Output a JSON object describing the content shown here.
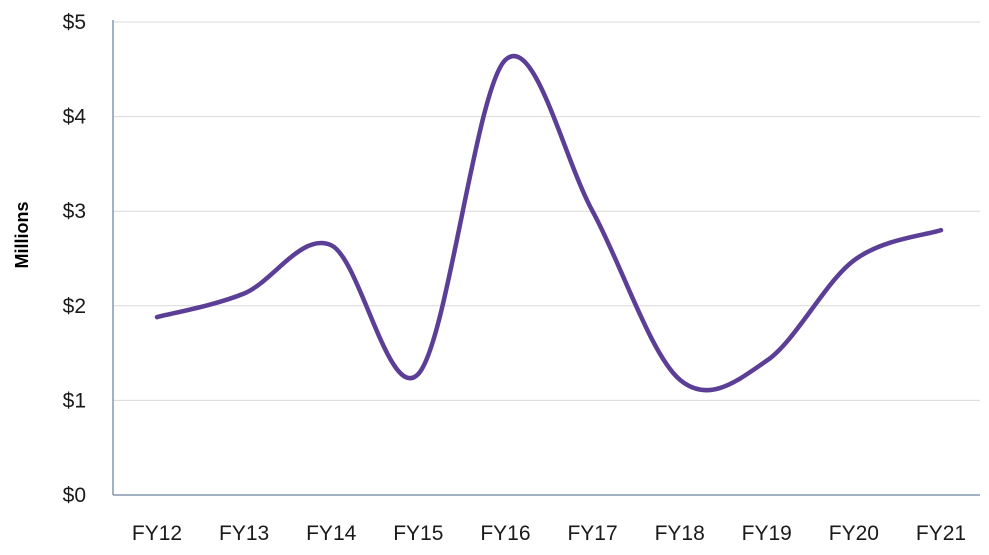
{
  "chart_data": {
    "type": "line",
    "title": "",
    "xlabel": "",
    "ylabel": "Millions",
    "categories": [
      "FY12",
      "FY13",
      "FY14",
      "FY15",
      "FY16",
      "FY17",
      "FY18",
      "FY19",
      "FY20",
      "FY21"
    ],
    "series": [
      {
        "values": [
          1.88,
          2.13,
          2.64,
          1.28,
          4.6,
          3.0,
          1.22,
          1.42,
          2.48,
          2.8
        ]
      }
    ],
    "y_ticks": [
      "$0",
      "$1",
      "$2",
      "$3",
      "$4",
      "$5"
    ],
    "ylim": [
      0,
      5
    ],
    "grid": true,
    "smooth": true,
    "colors": {
      "line": "#5B3E96",
      "grid": "#D9D9D9",
      "axis": "#8497B0"
    }
  }
}
